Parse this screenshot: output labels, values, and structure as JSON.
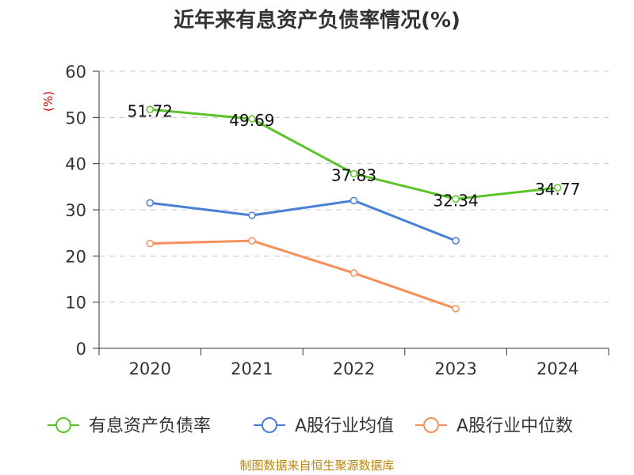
{
  "chart_data": {
    "type": "line",
    "title": "近年来有息资产负债率情况(%)",
    "ylabel": "(%)",
    "categories": [
      "2020",
      "2021",
      "2022",
      "2023",
      "2024"
    ],
    "ylim": [
      0,
      60
    ],
    "yticks": [
      0,
      10,
      20,
      30,
      40,
      50,
      60
    ],
    "grid": true,
    "legend_position": "bottom",
    "series": [
      {
        "name": "有息资产负债率",
        "values": [
          51.72,
          49.69,
          37.83,
          32.34,
          34.77
        ],
        "color": "#5cc42a",
        "show_labels": true
      },
      {
        "name": "A股行业均值",
        "values": [
          31.5,
          28.8,
          32.0,
          23.3,
          null
        ],
        "color": "#4a7fd8",
        "show_labels": false
      },
      {
        "name": "A股行业中位数",
        "values": [
          22.7,
          23.3,
          16.3,
          8.6,
          null
        ],
        "color": "#f5905a",
        "show_labels": false
      }
    ]
  },
  "source_text": "制图数据来自恒生聚源数据库"
}
